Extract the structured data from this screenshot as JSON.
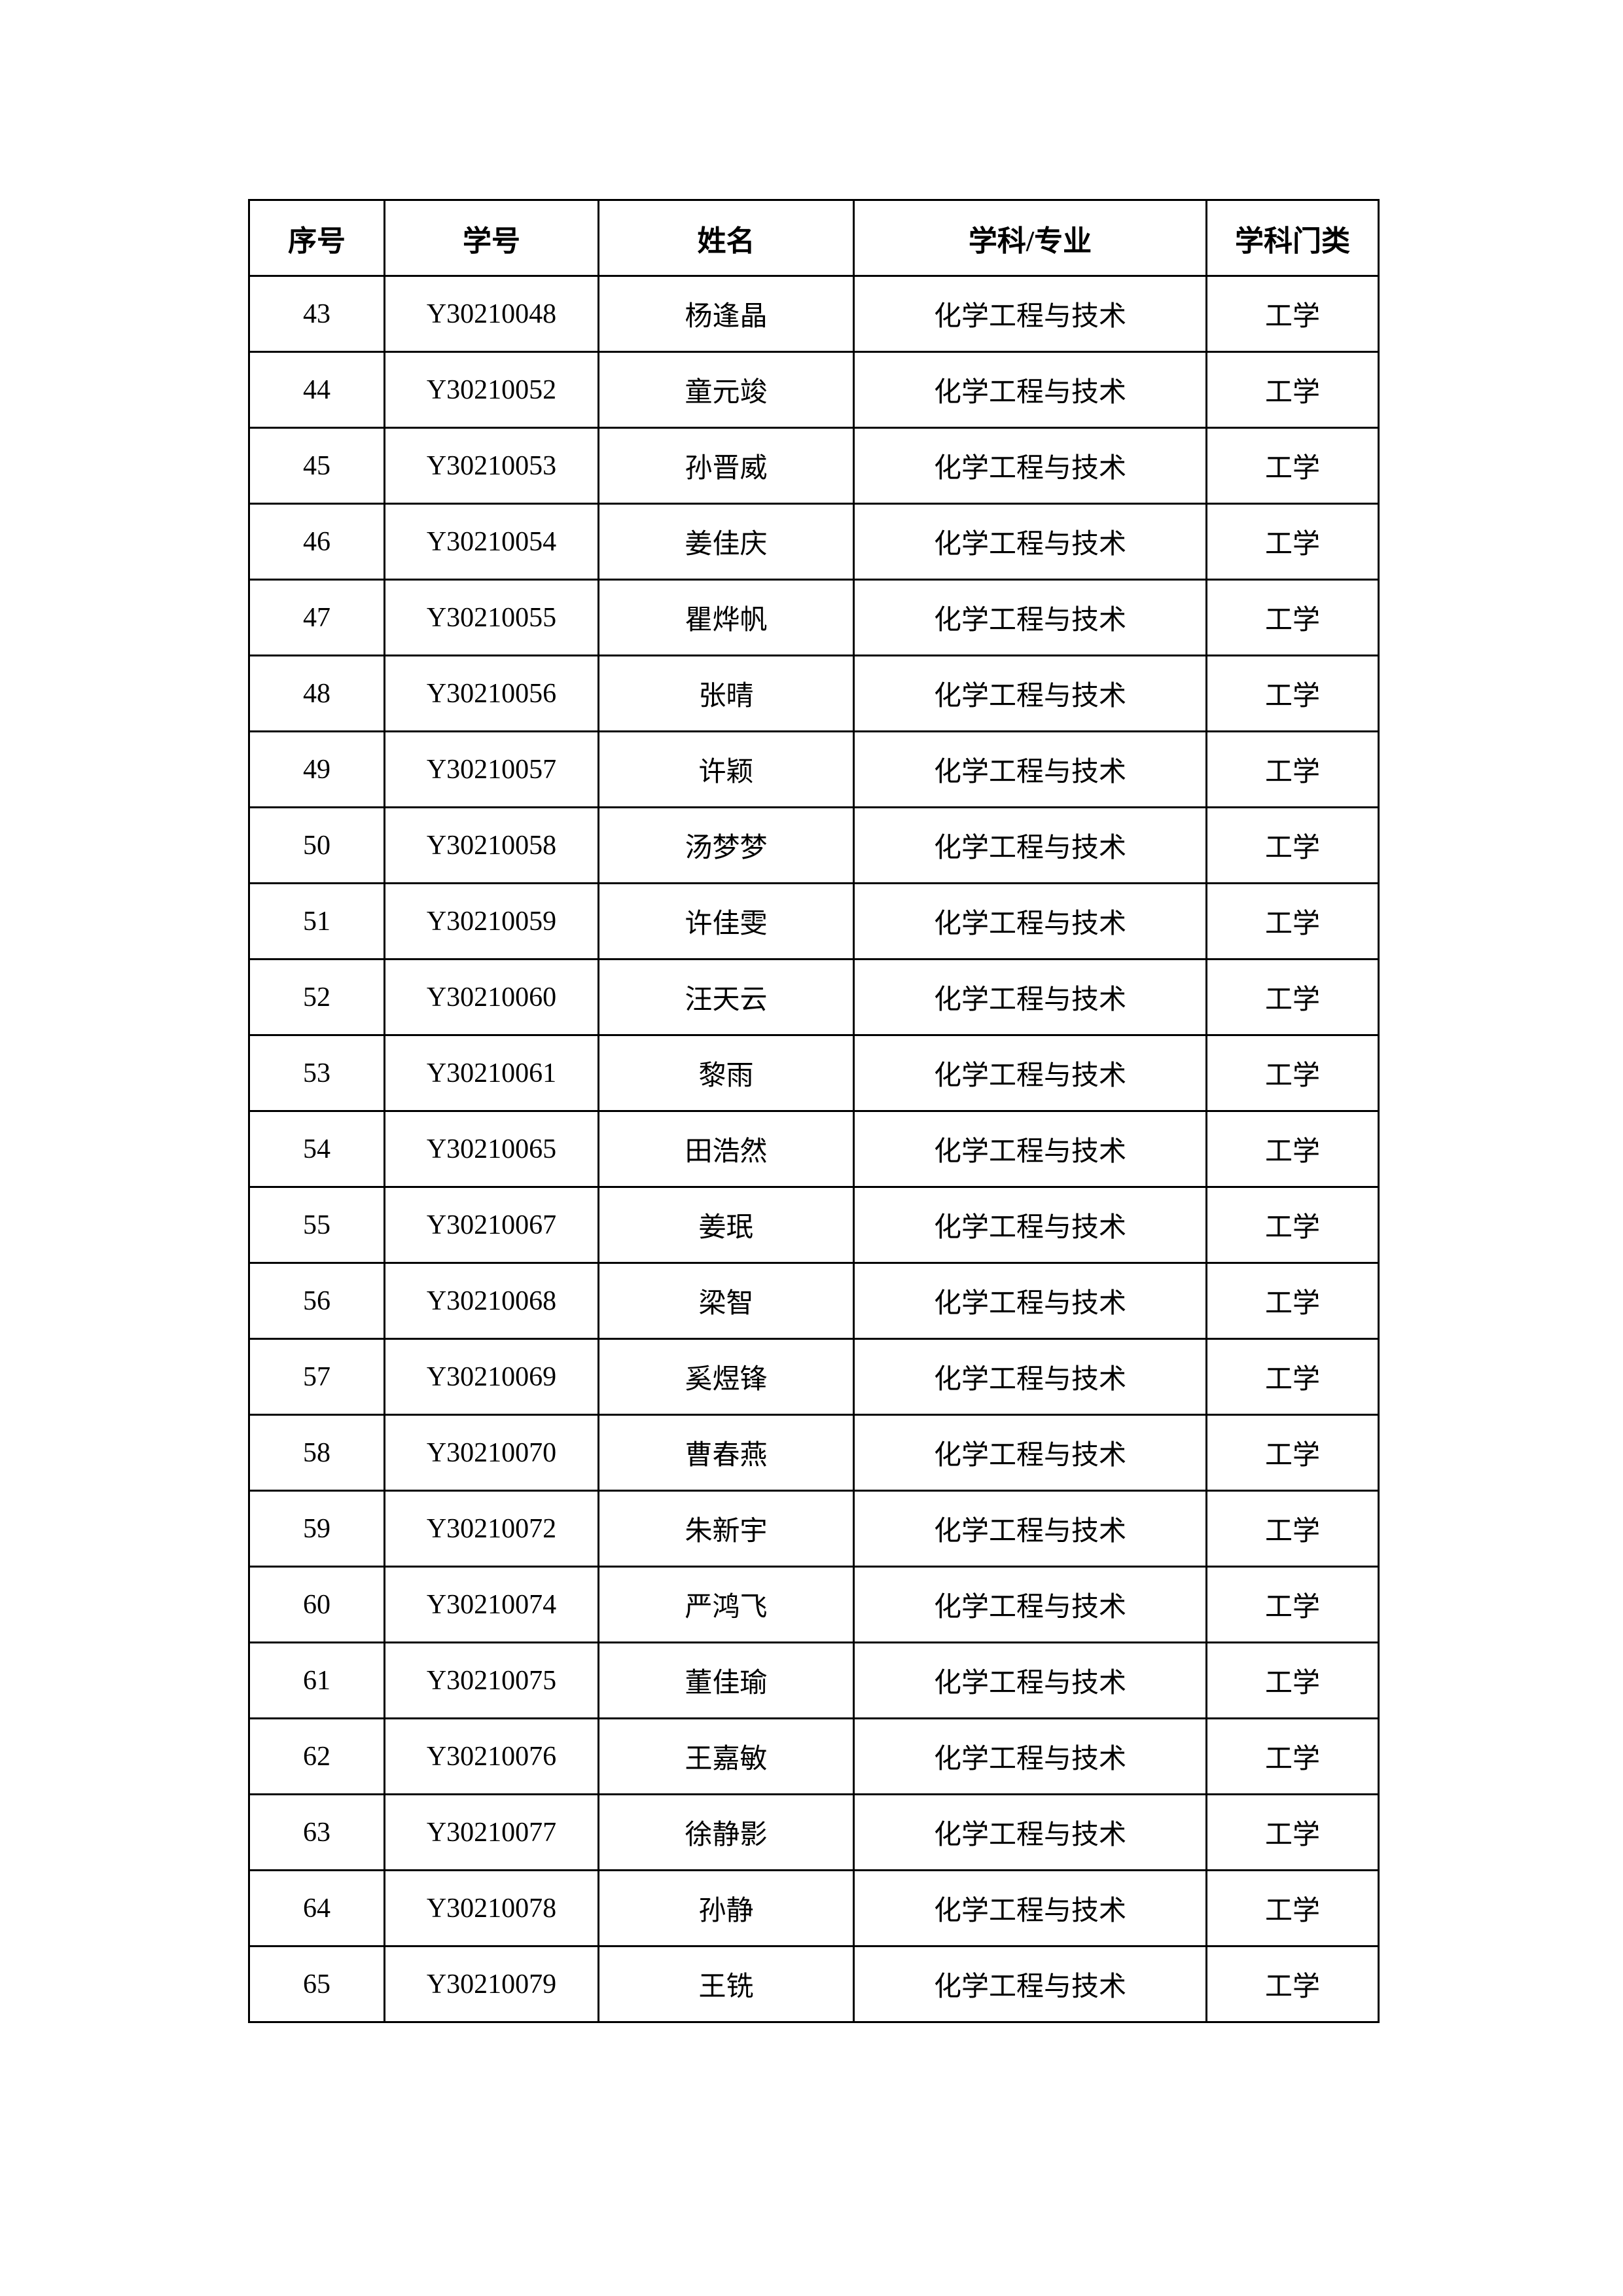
{
  "table": {
    "headers": [
      "序号",
      "学号",
      "姓名",
      "学科/专业",
      "学科门类"
    ],
    "rows": [
      [
        "43",
        "Y30210048",
        "杨逢晶",
        "化学工程与技术",
        "工学"
      ],
      [
        "44",
        "Y30210052",
        "童元竣",
        "化学工程与技术",
        "工学"
      ],
      [
        "45",
        "Y30210053",
        "孙晋威",
        "化学工程与技术",
        "工学"
      ],
      [
        "46",
        "Y30210054",
        "姜佳庆",
        "化学工程与技术",
        "工学"
      ],
      [
        "47",
        "Y30210055",
        "瞿烨帆",
        "化学工程与技术",
        "工学"
      ],
      [
        "48",
        "Y30210056",
        "张晴",
        "化学工程与技术",
        "工学"
      ],
      [
        "49",
        "Y30210057",
        "许颖",
        "化学工程与技术",
        "工学"
      ],
      [
        "50",
        "Y30210058",
        "汤梦梦",
        "化学工程与技术",
        "工学"
      ],
      [
        "51",
        "Y30210059",
        "许佳雯",
        "化学工程与技术",
        "工学"
      ],
      [
        "52",
        "Y30210060",
        "汪天云",
        "化学工程与技术",
        "工学"
      ],
      [
        "53",
        "Y30210061",
        "黎雨",
        "化学工程与技术",
        "工学"
      ],
      [
        "54",
        "Y30210065",
        "田浩然",
        "化学工程与技术",
        "工学"
      ],
      [
        "55",
        "Y30210067",
        "姜珉",
        "化学工程与技术",
        "工学"
      ],
      [
        "56",
        "Y30210068",
        "梁智",
        "化学工程与技术",
        "工学"
      ],
      [
        "57",
        "Y30210069",
        "奚煜锋",
        "化学工程与技术",
        "工学"
      ],
      [
        "58",
        "Y30210070",
        "曹春燕",
        "化学工程与技术",
        "工学"
      ],
      [
        "59",
        "Y30210072",
        "朱新宇",
        "化学工程与技术",
        "工学"
      ],
      [
        "60",
        "Y30210074",
        "严鸿飞",
        "化学工程与技术",
        "工学"
      ],
      [
        "61",
        "Y30210075",
        "董佳瑜",
        "化学工程与技术",
        "工学"
      ],
      [
        "62",
        "Y30210076",
        "王嘉敏",
        "化学工程与技术",
        "工学"
      ],
      [
        "63",
        "Y30210077",
        "徐静影",
        "化学工程与技术",
        "工学"
      ],
      [
        "64",
        "Y30210078",
        "孙静",
        "化学工程与技术",
        "工学"
      ],
      [
        "65",
        "Y30210079",
        "王铣",
        "化学工程与技术",
        "工学"
      ]
    ]
  }
}
